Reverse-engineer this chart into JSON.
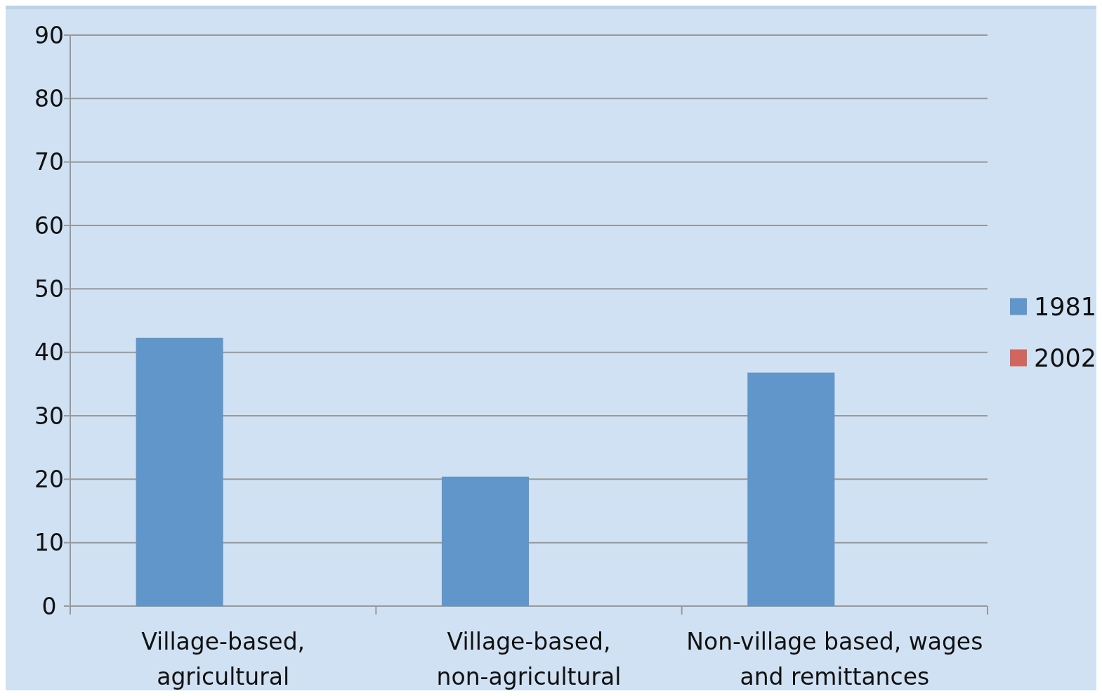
{
  "chart_data": {
    "type": "bar",
    "categories": [
      "Village-based, agricultural",
      "Village-based, non-agricultural",
      "Non-village based, wages and remittances"
    ],
    "series": [
      {
        "name": "1981",
        "color": "#6096c9",
        "values": [
          42.3,
          20.4,
          36.8
        ]
      },
      {
        "name": "2002",
        "color": "#d1665e",
        "values": [
          null,
          null,
          null
        ]
      }
    ],
    "ylim": [
      0,
      90
    ],
    "yticks": [
      0,
      10,
      20,
      30,
      40,
      50,
      60,
      70,
      80,
      90
    ],
    "grid": "y",
    "legend": "right"
  }
}
